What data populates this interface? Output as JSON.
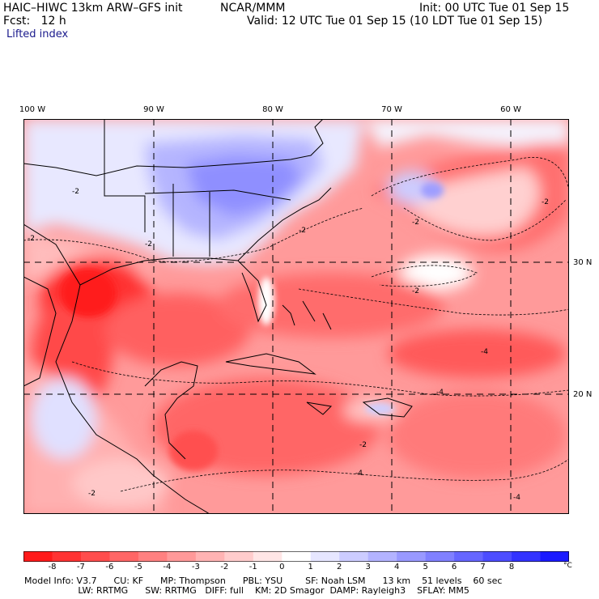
{
  "header": {
    "model": "HAIC–HIWC 13km ARW–GFS init",
    "org": "NCAR/MMM",
    "init": "Init: 00 UTC Tue 01 Sep 15",
    "fcst": "Fcst:   12 h",
    "valid": "Valid: 12 UTC Tue 01 Sep 15 (10 LDT Tue 01 Sep 15)",
    "field": "Lifted index"
  },
  "map": {
    "longitude_labels": [
      "100 W",
      "90 W",
      "80 W",
      "70 W",
      "60 W"
    ],
    "latitude_labels": [
      "30 N",
      "20 N"
    ],
    "contour_labels": [
      "-2",
      "-2",
      "-2",
      "-2",
      "-2",
      "-2",
      "-2",
      "-4",
      "-4",
      "-4",
      "-4",
      "-2",
      "-2"
    ]
  },
  "colorbar": {
    "labels": [
      "-8",
      "-7",
      "-6",
      "-5",
      "-4",
      "-3",
      "-2",
      "-1",
      "0",
      "1",
      "2",
      "3",
      "4",
      "5",
      "6",
      "7",
      "8"
    ],
    "unit": "°C",
    "colors": [
      "#ff1a1a",
      "#ff3333",
      "#ff4d4d",
      "#ff6666",
      "#ff8080",
      "#ff9999",
      "#ffb3b3",
      "#ffcccc",
      "#ffe6e6",
      "#ffffff",
      "#e6e6ff",
      "#ccccff",
      "#b3b3ff",
      "#9999ff",
      "#8080ff",
      "#6666ff",
      "#4d4dff",
      "#3333ff",
      "#1a1aff"
    ]
  },
  "footer": {
    "line1": "Model Info: V3.7      CU: KF      MP: Thompson      PBL: YSU        SF: Noah LSM      13 km    51 levels    60 sec",
    "line2": "                   LW: RRTMG      SW: RRTMG   DIFF: full    KM: 2D Smagor  DAMP: Rayleigh3    SFLAY: MM5"
  }
}
